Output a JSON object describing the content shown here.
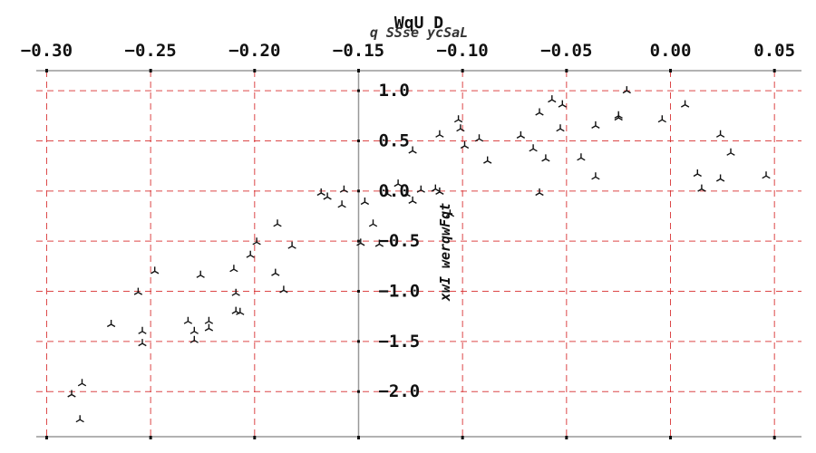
{
  "chart_data": {
    "type": "scatter",
    "title": "WqU D",
    "subtitle": "q SSse ycSaL",
    "xlabel": "",
    "ylabel": "xwI werqwFqt",
    "xlim": [
      -0.305,
      0.063
    ],
    "ylim": [
      -2.45,
      1.2
    ],
    "xticks": [
      -0.3,
      -0.25,
      -0.2,
      -0.15,
      -0.1,
      -0.05,
      0.0,
      0.05
    ],
    "xtick_labels": [
      "−0.30",
      "−0.25",
      "−0.20",
      "−0.15",
      "−0.10",
      "−0.05",
      "0.00",
      "0.05"
    ],
    "yticks": [
      1.0,
      0.5,
      0.0,
      -0.5,
      -1.0,
      -1.5,
      -2.0
    ],
    "ytick_labels": [
      "1.0",
      "0.5",
      "0.0",
      "−0.5",
      "−1.0",
      "−1.5",
      "−2.0"
    ],
    "x_axis_position": "top",
    "y_axis_position": "x = -0.15",
    "grid": true,
    "grid_color": "#d62728",
    "marker": "tri",
    "marker_color": "#111111",
    "points": [
      [
        -0.288,
        -2.03
      ],
      [
        -0.283,
        -1.92
      ],
      [
        -0.284,
        -2.28
      ],
      [
        -0.269,
        -1.33
      ],
      [
        -0.256,
        -1.01
      ],
      [
        -0.254,
        -1.4
      ],
      [
        -0.254,
        -1.52
      ],
      [
        -0.248,
        -0.8
      ],
      [
        -0.232,
        -1.3
      ],
      [
        -0.229,
        -1.4
      ],
      [
        -0.229,
        -1.49
      ],
      [
        -0.226,
        -0.84
      ],
      [
        -0.222,
        -1.3
      ],
      [
        -0.222,
        -1.37
      ],
      [
        -0.21,
        -0.78
      ],
      [
        -0.209,
        -1.02
      ],
      [
        -0.209,
        -1.2
      ],
      [
        -0.207,
        -1.21
      ],
      [
        -0.202,
        -0.64
      ],
      [
        -0.199,
        -0.51
      ],
      [
        -0.19,
        -0.82
      ],
      [
        -0.189,
        -0.33
      ],
      [
        -0.186,
        -0.99
      ],
      [
        -0.182,
        -0.55
      ],
      [
        -0.168,
        -0.02
      ],
      [
        -0.165,
        -0.06
      ],
      [
        -0.158,
        -0.14
      ],
      [
        -0.157,
        0.01
      ],
      [
        -0.149,
        -0.52
      ],
      [
        -0.147,
        -0.11
      ],
      [
        -0.143,
        -0.33
      ],
      [
        -0.14,
        -0.53
      ],
      [
        -0.136,
        -0.03
      ],
      [
        -0.131,
        0.07
      ],
      [
        -0.127,
        -0.03
      ],
      [
        -0.124,
        0.4
      ],
      [
        -0.124,
        -0.1
      ],
      [
        -0.12,
        0.01
      ],
      [
        -0.113,
        0.02
      ],
      [
        -0.111,
        -0.01
      ],
      [
        -0.106,
        -0.23
      ],
      [
        -0.111,
        0.56
      ],
      [
        -0.102,
        0.71
      ],
      [
        -0.101,
        0.62
      ],
      [
        -0.099,
        0.45
      ],
      [
        -0.092,
        0.52
      ],
      [
        -0.088,
        0.3
      ],
      [
        -0.072,
        0.55
      ],
      [
        -0.066,
        0.42
      ],
      [
        -0.063,
        0.78
      ],
      [
        -0.063,
        -0.02
      ],
      [
        -0.06,
        0.32
      ],
      [
        -0.057,
        0.91
      ],
      [
        -0.053,
        0.62
      ],
      [
        -0.052,
        0.86
      ],
      [
        -0.043,
        0.33
      ],
      [
        -0.036,
        0.65
      ],
      [
        -0.036,
        0.14
      ],
      [
        -0.025,
        0.73
      ],
      [
        -0.025,
        0.75
      ],
      [
        -0.021,
        1.0
      ],
      [
        -0.004,
        0.71
      ],
      [
        0.007,
        0.86
      ],
      [
        0.013,
        0.17
      ],
      [
        0.015,
        0.02
      ],
      [
        0.024,
        0.56
      ],
      [
        0.024,
        0.12
      ],
      [
        0.029,
        0.38
      ],
      [
        0.046,
        0.15
      ]
    ]
  }
}
